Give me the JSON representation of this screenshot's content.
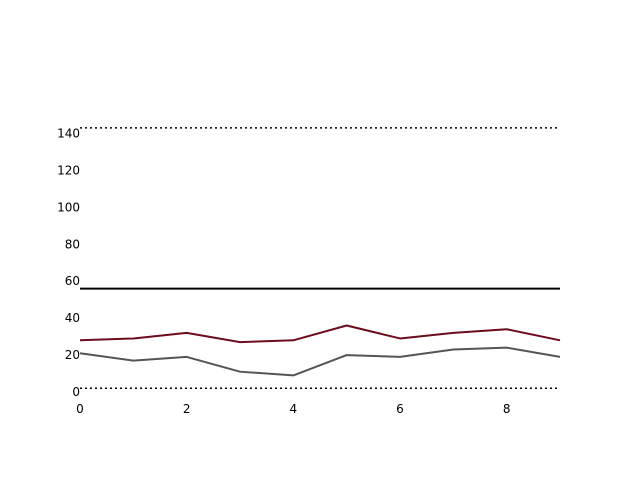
{
  "chart_data": {
    "type": "line",
    "title": "",
    "xlabel": "",
    "ylabel": "",
    "x": [
      0,
      1,
      2,
      3,
      4,
      5,
      6,
      7,
      8,
      9
    ],
    "xlim": [
      0,
      9
    ],
    "ylim": [
      0,
      150
    ],
    "xticks": [
      0,
      2,
      4,
      6,
      8
    ],
    "yticks": [
      0,
      20,
      40,
      60,
      80,
      100,
      120,
      140
    ],
    "grid": false,
    "legend": "none",
    "series": [
      {
        "values": [
          28,
          29,
          32,
          27,
          28,
          36,
          29,
          32,
          34,
          28
        ],
        "color": "#6b0d1c"
      },
      {
        "values": [
          21,
          17,
          19,
          11,
          9,
          20,
          19,
          23,
          24,
          19
        ],
        "color": "#555555"
      }
    ],
    "reference_lines": [
      {
        "y": 143,
        "style": "dotted",
        "color": "#000000"
      },
      {
        "y": 56,
        "style": "solid",
        "color": "#000000"
      },
      {
        "y": 2,
        "style": "dotted",
        "color": "#000000"
      }
    ]
  }
}
